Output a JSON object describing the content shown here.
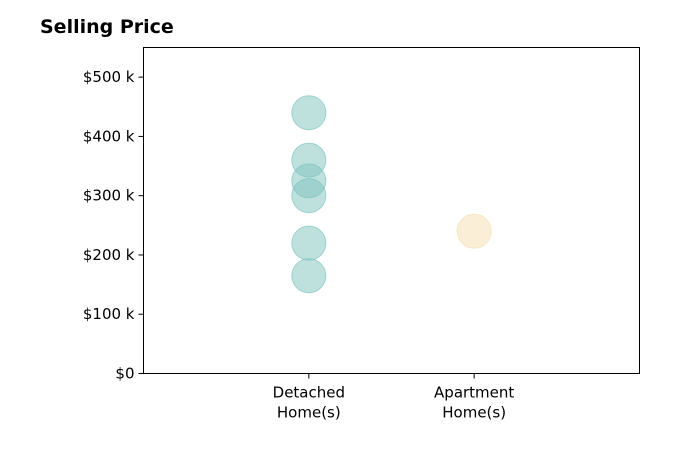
{
  "chart_data": {
    "type": "scatter",
    "title": "Selling Price",
    "xlabel": "",
    "ylabel": "",
    "categories": [
      "Detached\nHome(s)",
      "Apartment\nHome(s)"
    ],
    "ylim": [
      0,
      550000
    ],
    "yticks": [
      0,
      100000,
      200000,
      300000,
      400000,
      500000
    ],
    "ytick_labels": [
      "$0",
      "$100 k",
      "$200 k",
      "$300 k",
      "$400 k",
      "$500 k"
    ],
    "grid": false,
    "series": [
      {
        "category": "Detached\nHome(s)",
        "color": "#7fc4bd",
        "values": [
          440000,
          360000,
          325000,
          300000,
          220000,
          165000
        ]
      },
      {
        "category": "Apartment\nHome(s)",
        "color": "#f5deb0",
        "values": [
          240000
        ]
      }
    ]
  }
}
